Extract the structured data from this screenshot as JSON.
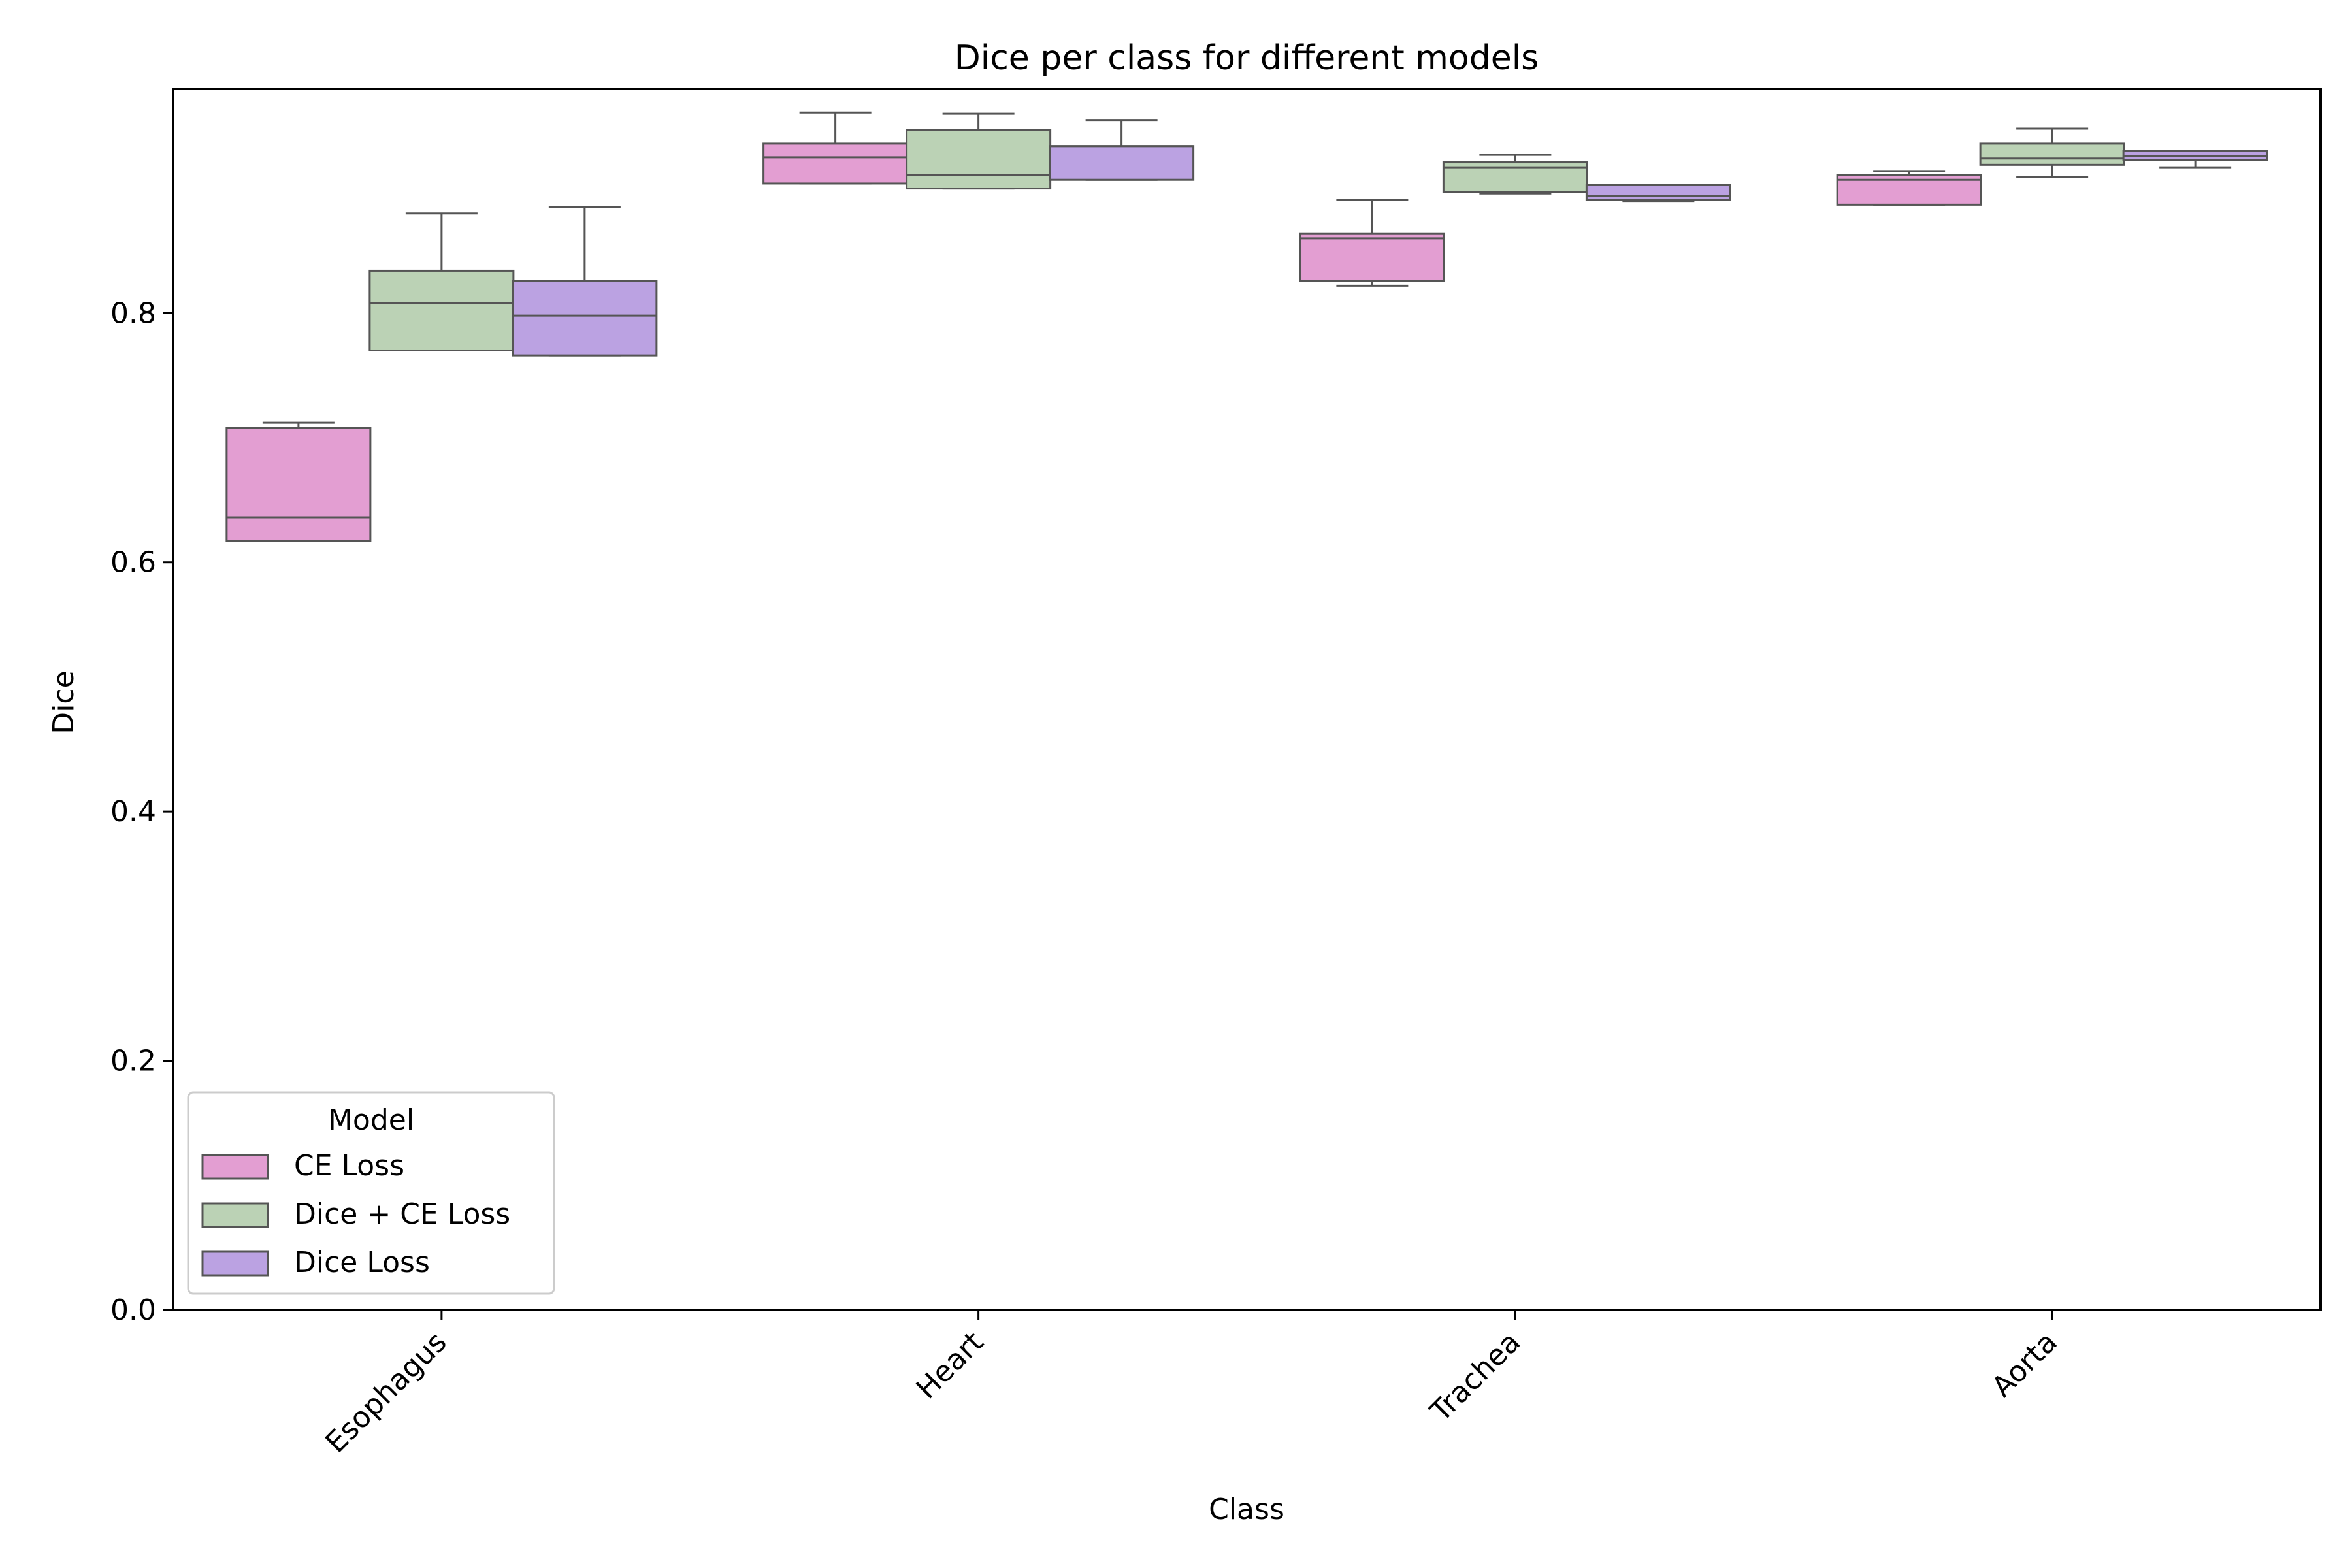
{
  "chart_data": {
    "type": "box",
    "title": "Dice per class for different models",
    "xlabel": "Class",
    "ylabel": "Dice",
    "ylim": [
      0,
      0.98
    ],
    "yticks": [
      "0.0",
      "0.2",
      "0.4",
      "0.6",
      "0.8"
    ],
    "categories": [
      "Esophagus",
      "Heart",
      "Trachea",
      "Aorta"
    ],
    "legend": {
      "title": "Model",
      "placement": "lower-left"
    },
    "series": [
      {
        "name": "CE Loss",
        "color": "#e39ed2",
        "boxes": [
          {
            "whislo": 0.617,
            "q1": 0.617,
            "med": 0.636,
            "q3": 0.708,
            "whishi": 0.712
          },
          {
            "whislo": 0.904,
            "q1": 0.904,
            "med": 0.925,
            "q3": 0.936,
            "whishi": 0.961
          },
          {
            "whislo": 0.822,
            "q1": 0.826,
            "med": 0.86,
            "q3": 0.864,
            "whishi": 0.891
          },
          {
            "whislo": 0.887,
            "q1": 0.887,
            "med": 0.907,
            "q3": 0.911,
            "whishi": 0.914
          }
        ]
      },
      {
        "name": "Dice + CE Loss",
        "color": "#bbd2b5",
        "boxes": [
          {
            "whislo": 0.77,
            "q1": 0.77,
            "med": 0.808,
            "q3": 0.834,
            "whishi": 0.88
          },
          {
            "whislo": 0.9,
            "q1": 0.9,
            "med": 0.911,
            "q3": 0.947,
            "whishi": 0.96
          },
          {
            "whislo": 0.896,
            "q1": 0.897,
            "med": 0.917,
            "q3": 0.921,
            "whishi": 0.927
          },
          {
            "whislo": 0.909,
            "q1": 0.919,
            "med": 0.924,
            "q3": 0.936,
            "whishi": 0.948
          }
        ]
      },
      {
        "name": "Dice Loss",
        "color": "#bba2e2",
        "boxes": [
          {
            "whislo": 0.766,
            "q1": 0.766,
            "med": 0.798,
            "q3": 0.826,
            "whishi": 0.885
          },
          {
            "whislo": 0.907,
            "q1": 0.907,
            "med": 0.934,
            "q3": 0.934,
            "whishi": 0.955
          },
          {
            "whislo": 0.89,
            "q1": 0.891,
            "med": 0.894,
            "q3": 0.903,
            "whishi": 0.903
          },
          {
            "whislo": 0.917,
            "q1": 0.923,
            "med": 0.926,
            "q3": 0.93,
            "whishi": 0.93
          }
        ]
      }
    ],
    "colors": {
      "edge": "#555555",
      "axis": "#000000"
    }
  }
}
